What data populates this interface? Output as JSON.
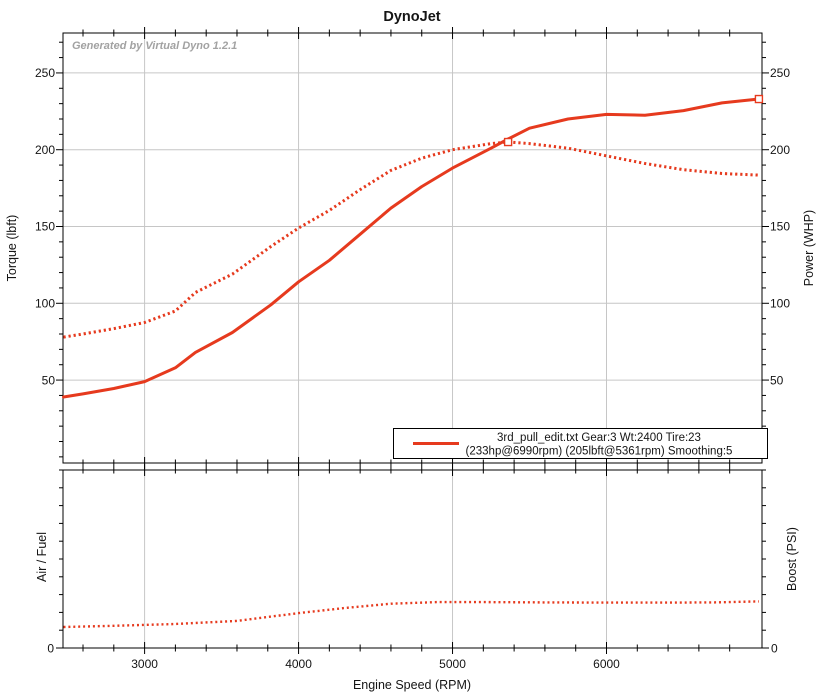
{
  "title": "DynoJet",
  "watermark": "Generated by Virtual Dyno 1.2.1",
  "colors": {
    "curve": "#e63a1e",
    "grid": "#c6c6c6",
    "axis": "#000000",
    "watermark": "#a2a2a2",
    "background": "#ffffff"
  },
  "legend": {
    "line1": "3rd_pull_edit.txt Gear:3 Wt:2400 Tire:23",
    "line2": "(233hp@6990rpm) (205lbft@5361rpm) Smoothing:5"
  },
  "chart_data": [
    {
      "type": "line",
      "panel": "top",
      "title": "DynoJet",
      "xlabel": "Engine Speed (RPM)",
      "ylabel_left": "Torque (lbft)",
      "ylabel_right": "Power (WHP)",
      "x_range": [
        2470,
        7010
      ],
      "y_range": [
        -4,
        276
      ],
      "x_major_ticks": [
        3000,
        4000,
        5000,
        6000
      ],
      "x_minor_ticks": [
        2600,
        2800,
        3200,
        3400,
        3600,
        3800,
        4200,
        4400,
        4600,
        4800,
        5200,
        5400,
        5600,
        5800,
        6200,
        6400,
        6600,
        6800
      ],
      "y_major_ticks": [
        50,
        100,
        150,
        200,
        250
      ],
      "y_minor_step": 10,
      "grid": true,
      "legend_position": "bottom-right-inside",
      "series": [
        {
          "name": "power_whp",
          "style": "solid",
          "peak": "233hp@6990rpm",
          "x": [
            2473,
            2600,
            2800,
            3000,
            3200,
            3330,
            3570,
            3820,
            4000,
            4200,
            4400,
            4600,
            4800,
            5000,
            5250,
            5361,
            5500,
            5750,
            6000,
            6250,
            6500,
            6750,
            6990
          ],
          "y": [
            39,
            41,
            44.5,
            49,
            58,
            68,
            81,
            99,
            114,
            128,
            145,
            162,
            176,
            188,
            201,
            207,
            214,
            220,
            223,
            222.5,
            225.5,
            230.5,
            233
          ],
          "end_marker": [
            6990,
            233
          ]
        },
        {
          "name": "torque_lbft",
          "style": "dotted",
          "peak": "205lbft@5361rpm",
          "x": [
            2473,
            2600,
            2800,
            3000,
            3200,
            3330,
            3570,
            3820,
            4000,
            4200,
            4400,
            4600,
            4800,
            5000,
            5250,
            5361,
            5500,
            5750,
            6000,
            6250,
            6500,
            6750,
            6990
          ],
          "y": [
            78,
            80,
            83.5,
            87.5,
            95,
            107,
            119,
            137,
            149,
            160.5,
            174,
            186.5,
            194.5,
            200,
            204,
            205,
            204,
            201,
            196,
            191,
            187,
            184.5,
            183.5
          ],
          "peak_marker": [
            5361,
            205
          ]
        }
      ]
    },
    {
      "type": "line",
      "panel": "bottom",
      "xlabel": "Engine Speed (RPM)",
      "ylabel_left": "Air / Fuel",
      "ylabel_right": "Boost (PSI)",
      "x_range": [
        2470,
        7010
      ],
      "y_range": [
        0,
        1
      ],
      "y_axis_note": "only 0 labeled on screen; series values are fraction of visible axis height",
      "x_major_ticks": [
        3000,
        4000,
        5000,
        6000
      ],
      "x_minor_ticks": [
        2600,
        2800,
        3200,
        3400,
        3600,
        3800,
        4200,
        4400,
        4600,
        4800,
        5200,
        5400,
        5600,
        5800,
        6200,
        6400,
        6600,
        6800
      ],
      "y_tick_labels": [
        "0"
      ],
      "y_minor_step": 0.1,
      "grid": true,
      "series": [
        {
          "name": "afr_or_boost_trace",
          "style": "dotted",
          "x": [
            2473,
            2800,
            3200,
            3600,
            4000,
            4300,
            4600,
            4900,
            5200,
            5600,
            6000,
            6400,
            6700,
            6990
          ],
          "y": [
            0.118,
            0.125,
            0.135,
            0.152,
            0.196,
            0.225,
            0.249,
            0.258,
            0.258,
            0.256,
            0.255,
            0.255,
            0.256,
            0.262
          ]
        }
      ]
    }
  ],
  "x_axis_title": "Engine Speed (RPM)"
}
